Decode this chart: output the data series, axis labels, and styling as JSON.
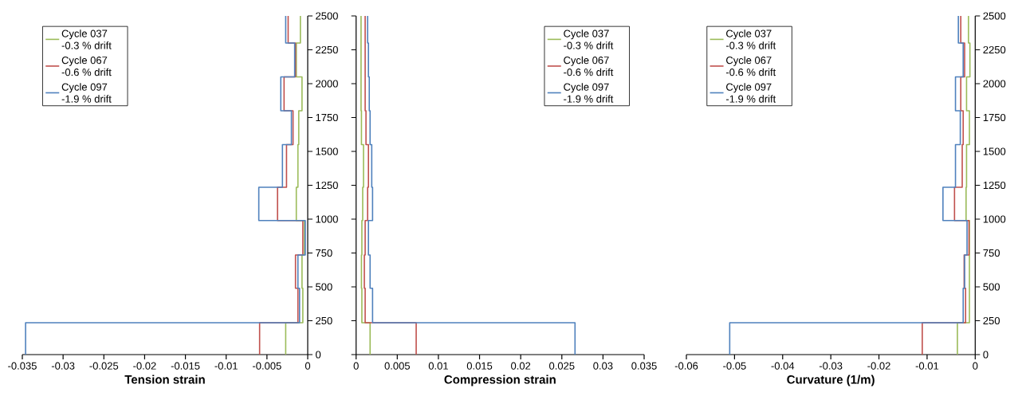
{
  "chart_data": [
    {
      "type": "line",
      "xlabel": "Tension strain",
      "xlim": [
        -0.035,
        0
      ],
      "xticks": [
        -0.035,
        -0.03,
        -0.025,
        -0.02,
        -0.015,
        -0.01,
        -0.005,
        0
      ],
      "ylim": [
        0,
        2500
      ],
      "yticks": [
        0,
        250,
        500,
        750,
        1000,
        1250,
        1500,
        1750,
        2000,
        2250,
        2500
      ],
      "legend": "top left",
      "series": [
        {
          "name": "Cycle 037 -0.3 % drift",
          "color": "#9bbb59",
          "x": [
            -0.0027,
            -0.0027,
            -0.0006,
            -0.0006,
            -0.0007,
            -0.0007,
            -0.0004,
            -0.0004,
            -0.0014,
            -0.0014,
            -0.0012,
            -0.0012,
            -0.0011,
            -0.0011,
            -0.0007,
            -0.0007,
            -0.0014,
            -0.0014,
            -0.0009,
            -0.0009
          ],
          "values": [
            0,
            235,
            235,
            490,
            490,
            735,
            735,
            990,
            990,
            1235,
            1235,
            1550,
            1550,
            1800,
            1800,
            2050,
            2050,
            2300,
            2300,
            2500
          ]
        },
        {
          "name": "Cycle 067 -0.6 % drift",
          "color": "#c0504d",
          "x": [
            -0.0059,
            -0.0059,
            -0.0012,
            -0.0012,
            -0.0015,
            -0.0015,
            -0.0006,
            -0.0006,
            -0.0037,
            -0.0037,
            -0.0026,
            -0.0026,
            -0.0018,
            -0.0018,
            -0.0029,
            -0.0029,
            -0.0015,
            -0.0015,
            -0.0024,
            -0.0024
          ],
          "values": [
            0,
            235,
            235,
            490,
            490,
            735,
            735,
            990,
            990,
            1235,
            1235,
            1550,
            1550,
            1800,
            1800,
            2050,
            2050,
            2300,
            2300,
            2500
          ]
        },
        {
          "name": "Cycle 097 -1.9 % drift",
          "color": "#4f81bd",
          "x": [
            -0.0346,
            -0.0346,
            -0.001,
            -0.001,
            -0.0012,
            -0.0012,
            -0.0003,
            -0.0003,
            -0.006,
            -0.006,
            -0.0031,
            -0.0031,
            -0.002,
            -0.002,
            -0.0033,
            -0.0033,
            -0.0016,
            -0.0016,
            -0.0027,
            -0.0027
          ],
          "values": [
            0,
            235,
            235,
            490,
            490,
            735,
            735,
            990,
            990,
            1235,
            1235,
            1550,
            1550,
            1800,
            1800,
            2050,
            2050,
            2300,
            2300,
            2500
          ]
        }
      ]
    },
    {
      "type": "line",
      "xlabel": "Compression strain",
      "xlim": [
        0,
        0.035
      ],
      "xticks": [
        0,
        0.005,
        0.01,
        0.015,
        0.02,
        0.025,
        0.03,
        0.035
      ],
      "ylim": [
        0,
        2500
      ],
      "yticks": [
        0,
        250,
        500,
        750,
        1000,
        1250,
        1500,
        1750,
        2000,
        2250,
        2500
      ],
      "tick_labels": "x",
      "legend": "top right",
      "series": [
        {
          "name": "Cycle 037 -0.3 % drift",
          "color": "#9bbb59",
          "x": [
            0.0017,
            0.0017,
            0.0007,
            0.0007,
            0.00065,
            0.00065,
            0.0007,
            0.0007,
            0.0008,
            0.0008,
            0.0009,
            0.0009,
            0.00065,
            0.00065,
            0.0006,
            0.0006,
            0.0006,
            0.0006,
            0.0006,
            0.0006
          ],
          "values": [
            0,
            235,
            235,
            490,
            490,
            735,
            735,
            990,
            990,
            1235,
            1235,
            1550,
            1550,
            1800,
            1800,
            2050,
            2050,
            2300,
            2300,
            2500
          ]
        },
        {
          "name": "Cycle 067 -0.6 % drift",
          "color": "#c0504d",
          "x": [
            0.0073,
            0.0073,
            0.0011,
            0.0011,
            0.001,
            0.001,
            0.0011,
            0.0011,
            0.0014,
            0.0014,
            0.0015,
            0.0015,
            0.0012,
            0.0012,
            0.0011,
            0.0011,
            0.0011,
            0.0011,
            0.0011,
            0.0011
          ],
          "values": [
            0,
            235,
            235,
            490,
            490,
            735,
            735,
            990,
            990,
            1235,
            1235,
            1550,
            1550,
            1800,
            1800,
            2050,
            2050,
            2300,
            2300,
            2500
          ]
        },
        {
          "name": "Cycle 097 -1.9 % drift",
          "color": "#4f81bd",
          "x": [
            0.0266,
            0.0266,
            0.002,
            0.002,
            0.0017,
            0.0017,
            0.0015,
            0.0015,
            0.002,
            0.002,
            0.0019,
            0.0019,
            0.0017,
            0.0017,
            0.0016,
            0.0016,
            0.0015,
            0.0015,
            0.0014,
            0.0014
          ],
          "values": [
            0,
            235,
            235,
            490,
            490,
            735,
            735,
            990,
            990,
            1235,
            1235,
            1550,
            1550,
            1800,
            1800,
            2050,
            2050,
            2300,
            2300,
            2500
          ]
        }
      ]
    },
    {
      "type": "line",
      "xlabel": "Curvature (1/m)",
      "xlim": [
        -0.06,
        0
      ],
      "xticks": [
        -0.06,
        -0.05,
        -0.04,
        -0.03,
        -0.02,
        -0.01,
        0
      ],
      "ylim": [
        0,
        2500
      ],
      "yticks": [
        0,
        250,
        500,
        750,
        1000,
        1250,
        1500,
        1750,
        2000,
        2250,
        2500
      ],
      "legend": "top left",
      "series": [
        {
          "name": "Cycle 037 -0.3 % drift",
          "color": "#9bbb59",
          "x": [
            -0.0037,
            -0.0037,
            -0.0012,
            -0.0012,
            -0.0012,
            -0.0012,
            -0.0012,
            -0.0012,
            -0.0019,
            -0.0019,
            -0.0018,
            -0.0018,
            -0.0012,
            -0.0012,
            -0.0018,
            -0.0018,
            -0.0011,
            -0.0011,
            -0.0014,
            -0.0014
          ],
          "values": [
            0,
            235,
            235,
            490,
            490,
            735,
            735,
            990,
            990,
            1235,
            1235,
            1550,
            1550,
            1800,
            1800,
            2050,
            2050,
            2300,
            2300,
            2500
          ]
        },
        {
          "name": "Cycle 067 -0.6 % drift",
          "color": "#c0504d",
          "x": [
            -0.011,
            -0.011,
            -0.002,
            -0.002,
            -0.0023,
            -0.0023,
            -0.0013,
            -0.0013,
            -0.0043,
            -0.0043,
            -0.0027,
            -0.0027,
            -0.0025,
            -0.0025,
            -0.003,
            -0.003,
            -0.0022,
            -0.0022,
            -0.003,
            -0.003
          ],
          "values": [
            0,
            235,
            235,
            490,
            490,
            735,
            735,
            990,
            990,
            1235,
            1235,
            1550,
            1550,
            1800,
            1800,
            2050,
            2050,
            2300,
            2300,
            2500
          ]
        },
        {
          "name": "Cycle 097 -1.9 % drift",
          "color": "#4f81bd",
          "x": [
            -0.051,
            -0.051,
            -0.0025,
            -0.0025,
            -0.0022,
            -0.0022,
            -0.0017,
            -0.0017,
            -0.0067,
            -0.0067,
            -0.0041,
            -0.0041,
            -0.0031,
            -0.0031,
            -0.0041,
            -0.0041,
            -0.0025,
            -0.0025,
            -0.0035,
            -0.0035
          ],
          "values": [
            0,
            235,
            235,
            490,
            490,
            735,
            735,
            990,
            990,
            1235,
            1235,
            1550,
            1550,
            1800,
            1800,
            2050,
            2050,
            2300,
            2300,
            2500
          ]
        }
      ]
    }
  ]
}
